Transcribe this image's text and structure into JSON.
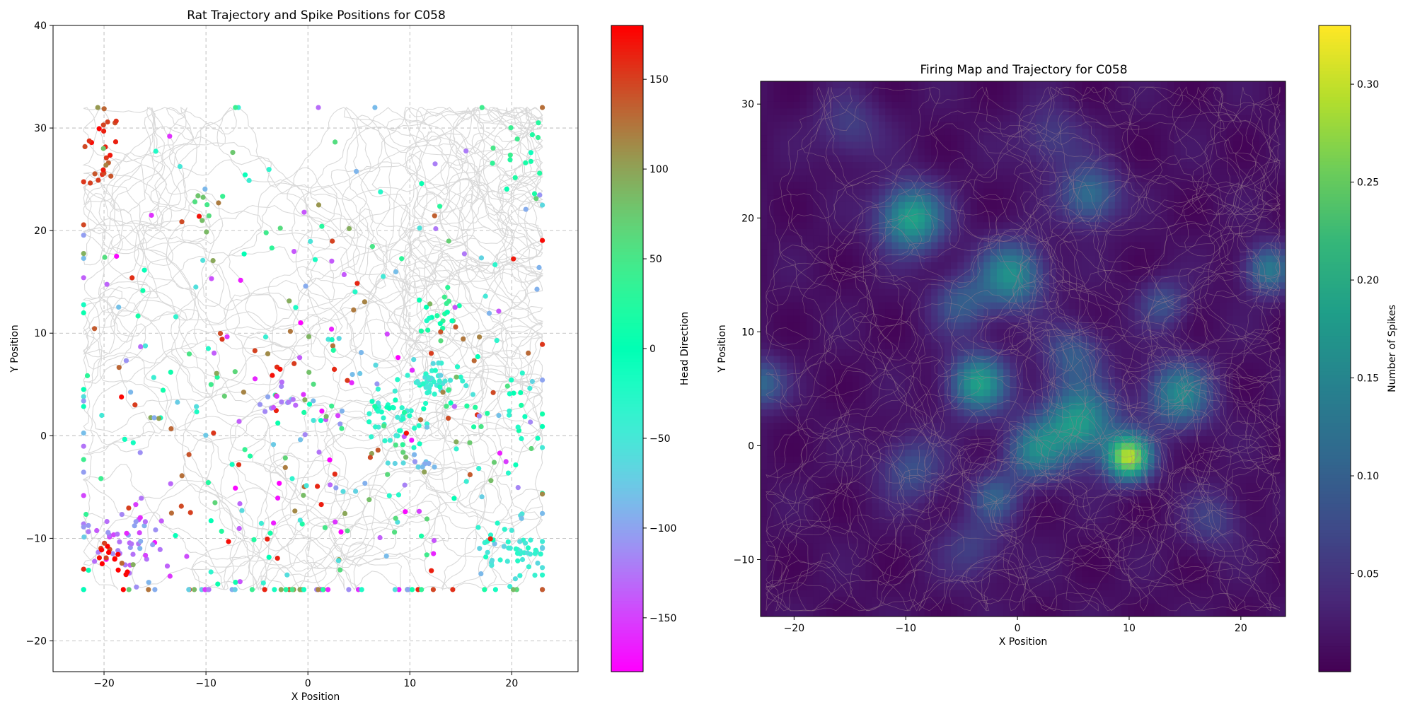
{
  "chart_data": [
    {
      "type": "scatter",
      "title": "Rat Trajectory and Spike Positions for  C058",
      "xlabel": "X Position",
      "ylabel": "Y Position",
      "xlim": [
        -25,
        26.5
      ],
      "ylim": [
        -23,
        40
      ],
      "xticks": [
        -20,
        -10,
        0,
        10,
        20
      ],
      "yticks": [
        -20,
        -10,
        0,
        10,
        20,
        30,
        40
      ],
      "grid": true,
      "trajectory_color": "#d9d9d9",
      "arena": {
        "x": [
          -22,
          23
        ],
        "y": [
          -15,
          32
        ]
      },
      "colorbar": {
        "label": "Head Direction",
        "colormap": "rainbow",
        "range": [
          -180,
          180
        ],
        "ticks": [
          -150,
          -100,
          -50,
          0,
          50,
          100,
          150
        ]
      },
      "spike_clusters": [
        {
          "x": 12.5,
          "y": 5.5,
          "sx": 1.5,
          "sy": 0.8,
          "n": 45,
          "hd": -45
        },
        {
          "x": 8.5,
          "y": 2.0,
          "sx": 2.0,
          "sy": 1.5,
          "n": 40,
          "hd": -30
        },
        {
          "x": 13.0,
          "y": 12.0,
          "sx": 1.0,
          "sy": 1.5,
          "n": 20,
          "hd": 20
        },
        {
          "x": 20.5,
          "y": -11.0,
          "sx": 2.0,
          "sy": 1.5,
          "n": 55,
          "hd": -45
        },
        {
          "x": -17.0,
          "y": -10.0,
          "sx": 2.0,
          "sy": 1.5,
          "n": 45,
          "hd": -130
        },
        {
          "x": -20.5,
          "y": 28.5,
          "sx": 0.8,
          "sy": 2.0,
          "n": 25,
          "hd": 150
        },
        {
          "x": -19.5,
          "y": -12.0,
          "sx": 1.0,
          "sy": 1.5,
          "n": 15,
          "hd": 170
        },
        {
          "x": 21.0,
          "y": 2.0,
          "sx": 0.8,
          "sy": 3.0,
          "n": 15,
          "hd": -10
        },
        {
          "x": 21.0,
          "y": 26.0,
          "sx": 1.2,
          "sy": 3.0,
          "n": 15,
          "hd": 30
        },
        {
          "x": 0.0,
          "y": 0.0,
          "sx": 14.0,
          "sy": 13.0,
          "n": 420,
          "hd": 0
        },
        {
          "x": -2.0,
          "y": 3.5,
          "sx": 1.0,
          "sy": 1.0,
          "n": 12,
          "hd": -110
        },
        {
          "x": 11.0,
          "y": -2.0,
          "sx": 1.0,
          "sy": 1.0,
          "n": 10,
          "hd": -90
        },
        {
          "x": -9.5,
          "y": 22.0,
          "sx": 1.0,
          "sy": 1.0,
          "n": 8,
          "hd": 70
        }
      ]
    },
    {
      "type": "heatmap",
      "title": "Firing Map and Trajectory for  C058",
      "xlabel": "X Position",
      "ylabel": "Y Position",
      "xlim": [
        -23,
        24
      ],
      "ylim": [
        -15,
        32
      ],
      "xticks": [
        -20,
        -10,
        0,
        10,
        20
      ],
      "yticks": [
        -10,
        0,
        10,
        20,
        30
      ],
      "trajectory_color": "#9c7f8e",
      "colorbar": {
        "label": "Number of Spikes",
        "colormap": "viridis",
        "range": [
          0,
          0.33
        ],
        "ticks": [
          0.05,
          0.1,
          0.15,
          0.2,
          0.25,
          0.3
        ]
      },
      "firing_fields": [
        {
          "x": 10.0,
          "y": -1.0,
          "s": 1.4,
          "v": 0.27
        },
        {
          "x": 5.5,
          "y": 2.0,
          "s": 2.3,
          "v": 0.17
        },
        {
          "x": 1.5,
          "y": -0.5,
          "s": 1.8,
          "v": 0.12
        },
        {
          "x": -3.5,
          "y": 5.5,
          "s": 1.8,
          "v": 0.17
        },
        {
          "x": -9.5,
          "y": 20.0,
          "s": 2.0,
          "v": 0.18
        },
        {
          "x": -0.5,
          "y": 15.0,
          "s": 2.0,
          "v": 0.15
        },
        {
          "x": 14.5,
          "y": 4.5,
          "s": 2.0,
          "v": 0.14
        },
        {
          "x": 6.5,
          "y": 22.0,
          "s": 1.8,
          "v": 0.11
        },
        {
          "x": 22.5,
          "y": 15.5,
          "s": 1.5,
          "v": 0.12
        },
        {
          "x": -23.0,
          "y": 5.5,
          "s": 1.5,
          "v": 0.1
        },
        {
          "x": -5.0,
          "y": 12.5,
          "s": 1.8,
          "v": 0.08
        },
        {
          "x": 5.0,
          "y": 8.0,
          "s": 1.8,
          "v": 0.08
        },
        {
          "x": -9.5,
          "y": -2.0,
          "s": 2.0,
          "v": 0.07
        },
        {
          "x": -2.0,
          "y": -4.5,
          "s": 1.5,
          "v": 0.08
        },
        {
          "x": 13.0,
          "y": 12.5,
          "s": 1.5,
          "v": 0.07
        },
        {
          "x": -15.0,
          "y": 28.0,
          "s": 2.0,
          "v": 0.05
        },
        {
          "x": 17.5,
          "y": -6.5,
          "s": 1.8,
          "v": 0.05
        },
        {
          "x": -4.0,
          "y": -9.0,
          "s": 2.0,
          "v": 0.05
        },
        {
          "x": 3.0,
          "y": 27.0,
          "s": 2.0,
          "v": 0.05
        }
      ]
    }
  ]
}
